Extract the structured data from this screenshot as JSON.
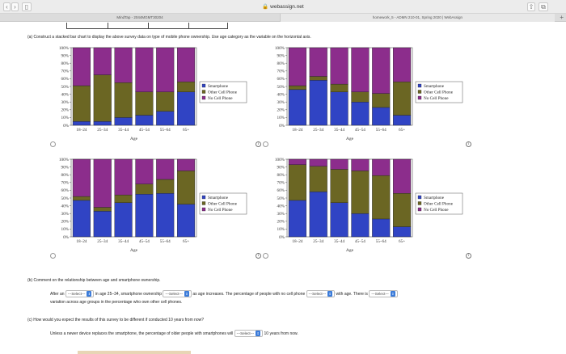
{
  "browser": {
    "url": "webassign.net",
    "tabs": [
      "MindTap - 2044MGMT30204",
      "homework_5 - ADMN 210-01, Spring 2020 | WebAssign"
    ],
    "new_tab": "+"
  },
  "part_a": {
    "prompt": "(a)  Construct a stacked bar chart to display the above survey data on type of mobile phone ownership. Use age category as the variable on the horizontal axis."
  },
  "legend": [
    "Smartphone",
    "Other Cell Phone",
    "No Cell Phone"
  ],
  "colors": {
    "smartphone": "#3044c4",
    "other": "#6b6623",
    "none": "#8c2d8c"
  },
  "chart_data": [
    {
      "type": "bar",
      "stacked": true,
      "xlabel": "Age",
      "categories": [
        "18–24",
        "25–34",
        "35–44",
        "45–54",
        "55–64",
        "65+"
      ],
      "yticks": [
        "0%",
        "10%",
        "20%",
        "30%",
        "40%",
        "50%",
        "60%",
        "70%",
        "80%",
        "90%",
        "100%"
      ],
      "ylim": [
        0,
        100
      ],
      "series": [
        {
          "name": "Smartphone",
          "values": [
            5,
            5,
            10,
            13,
            18,
            43
          ]
        },
        {
          "name": "Other Cell Phone",
          "values": [
            46,
            60,
            45,
            30,
            25,
            13
          ]
        },
        {
          "name": "No Cell Phone",
          "values": [
            49,
            35,
            45,
            57,
            57,
            44
          ]
        }
      ]
    },
    {
      "type": "bar",
      "stacked": true,
      "xlabel": "Age",
      "categories": [
        "18–24",
        "25–34",
        "35–44",
        "45–54",
        "55–64",
        "65+"
      ],
      "yticks": [
        "0%",
        "10%",
        "20%",
        "30%",
        "40%",
        "50%",
        "60%",
        "70%",
        "80%",
        "90%",
        "100%"
      ],
      "ylim": [
        0,
        100
      ],
      "series": [
        {
          "name": "Smartphone",
          "values": [
            46,
            58,
            43,
            30,
            23,
            13
          ]
        },
        {
          "name": "Other Cell Phone",
          "values": [
            5,
            5,
            10,
            13,
            18,
            43
          ]
        },
        {
          "name": "No Cell Phone",
          "values": [
            49,
            37,
            47,
            57,
            59,
            44
          ]
        }
      ]
    },
    {
      "type": "bar",
      "stacked": true,
      "xlabel": "Age",
      "categories": [
        "18–24",
        "25–34",
        "35–44",
        "45–54",
        "55–64",
        "65+"
      ],
      "yticks": [
        "0%",
        "10%",
        "20%",
        "30%",
        "40%",
        "50%",
        "60%",
        "70%",
        "80%",
        "90%",
        "100%"
      ],
      "ylim": [
        0,
        100
      ],
      "series": [
        {
          "name": "Smartphone",
          "values": [
            47,
            33,
            44,
            55,
            56,
            42
          ]
        },
        {
          "name": "Other Cell Phone",
          "values": [
            5,
            5,
            10,
            13,
            18,
            43
          ]
        },
        {
          "name": "No Cell Phone",
          "values": [
            48,
            62,
            46,
            32,
            26,
            15
          ]
        }
      ]
    },
    {
      "type": "bar",
      "stacked": true,
      "xlabel": "Age",
      "categories": [
        "18–24",
        "25–34",
        "35–44",
        "45–54",
        "55–64",
        "65+"
      ],
      "yticks": [
        "0%",
        "10%",
        "20%",
        "30%",
        "40%",
        "50%",
        "60%",
        "70%",
        "80%",
        "90%",
        "100%"
      ],
      "ylim": [
        0,
        100
      ],
      "series": [
        {
          "name": "Smartphone",
          "values": [
            47,
            58,
            44,
            30,
            23,
            13
          ]
        },
        {
          "name": "Other Cell Phone",
          "values": [
            46,
            33,
            43,
            55,
            56,
            43
          ]
        },
        {
          "name": "No Cell Phone",
          "values": [
            7,
            9,
            13,
            15,
            21,
            44
          ]
        }
      ]
    }
  ],
  "part_b": {
    "prompt": "(b)  Comment on the relationship between age and smartphone ownership.",
    "t1": "After an",
    "t2": "in age 25–34, smartphone ownership",
    "t3": "as age increases. The percentage of people with no cell phone",
    "t4": "with age. There is",
    "t5": "variation across age groups in the percentage who own other cell phones.",
    "select": "---Select---"
  },
  "part_c": {
    "prompt": "(c)  How would you expect the results of this survey to be different if conducted 10 years from now?",
    "t1": "Unless a newer device replaces the smartphone, the percentage of older people with smartphones will",
    "t2": "10 years from now.",
    "select": "---Select---"
  }
}
